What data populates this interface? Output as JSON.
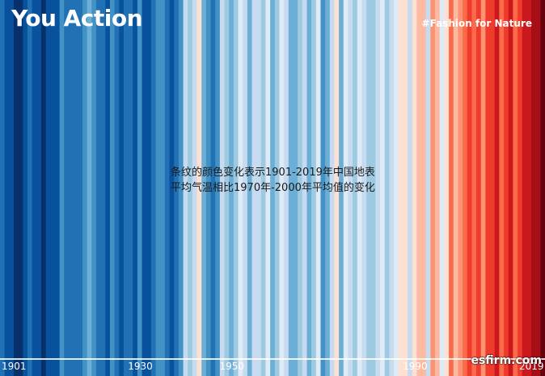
{
  "header": {
    "title": "You Action",
    "hashtag": "#Fashion for Nature"
  },
  "caption": {
    "line1": "条纹的颜色变化表示1901-2019年中国地表",
    "line2": "平均气温相比1970年-2000年平均值的变化"
  },
  "watermark": "esfirm.com",
  "colors": {
    "scale": [
      "#08306b",
      "#08519c",
      "#2171b5",
      "#4292c6",
      "#6baed6",
      "#9ecae1",
      "#c6dbef",
      "#deebf7",
      "#fee0d2",
      "#fcbba1",
      "#fc9272",
      "#fb6a4a",
      "#ef3b2c",
      "#cb181d",
      "#a50f15",
      "#67000d"
    ]
  },
  "chart_data": {
    "type": "heatmap",
    "xlim": [
      1901,
      2019
    ],
    "tick_labels": [
      {
        "year": 1901,
        "label": "1901"
      },
      {
        "year": 1930,
        "label": "1930"
      },
      {
        "year": 1950,
        "label": "1950"
      },
      {
        "year": 1990,
        "label": "1990"
      },
      {
        "year": 2019,
        "label": "2019"
      }
    ],
    "color_levels": [
      2,
      1,
      1,
      0,
      0,
      1,
      2,
      1,
      1,
      0,
      1,
      1,
      1,
      3,
      2,
      2,
      2,
      2,
      3,
      4,
      3,
      2,
      2,
      1,
      3,
      2,
      1,
      2,
      2,
      1,
      3,
      1,
      1,
      2,
      3,
      3,
      2,
      1,
      2,
      3,
      6,
      5,
      6,
      8,
      4,
      3,
      2,
      3,
      6,
      5,
      4,
      5,
      7,
      6,
      4,
      6,
      6,
      5,
      7,
      4,
      5,
      7,
      6,
      4,
      4,
      5,
      6,
      4,
      5,
      7,
      3,
      4,
      6,
      8,
      4,
      7,
      6,
      5,
      7,
      6,
      5,
      5,
      6,
      7,
      5,
      6,
      7,
      8,
      8,
      6,
      8,
      9,
      9,
      6,
      10,
      9,
      7,
      8,
      11,
      9,
      10,
      11,
      12,
      11,
      12,
      10,
      12,
      12,
      13,
      11,
      12,
      13,
      11,
      12,
      13,
      13,
      14,
      14,
      15
    ]
  }
}
